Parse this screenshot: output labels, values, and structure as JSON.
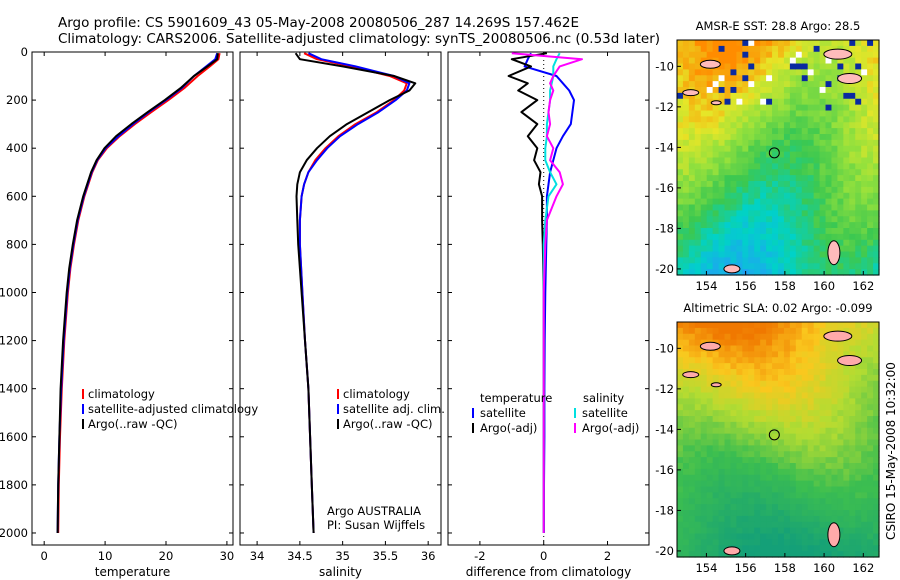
{
  "header": {
    "line1": "Argo profile: CS 5901609_43 05-May-2008 20080506_287 14.269S 157.462E",
    "line2": "Climatology: CARS2006. Satellite-adjusted climatology: synTS_20080506.nc (0.53d later)"
  },
  "side_label": "CSIRO 15-May-2008 10:32:00",
  "colors": {
    "red": "#ff0000",
    "blue": "#0000ff",
    "black": "#000000",
    "cyan": "#00e0e0",
    "magenta": "#ff00ff"
  },
  "chart_data": [
    {
      "type": "line",
      "panel": "temperature",
      "xlabel": "temperature",
      "ylabel": "",
      "xlim": [
        -2,
        31
      ],
      "ylim": [
        2050,
        0
      ],
      "y_reversed": true,
      "xticks": [
        0,
        10,
        20,
        30
      ],
      "yticks": [
        0,
        200,
        400,
        600,
        800,
        1000,
        1200,
        1400,
        1600,
        1800,
        2000
      ],
      "depth": [
        5,
        30,
        60,
        100,
        150,
        200,
        250,
        300,
        350,
        400,
        450,
        500,
        600,
        700,
        800,
        900,
        1000,
        1200,
        1400,
        1600,
        1800,
        2000
      ],
      "series": [
        {
          "name": "climatology",
          "color": "red",
          "values": [
            28.8,
            28.6,
            27.2,
            25.2,
            23.0,
            20.4,
            17.6,
            14.9,
            12.4,
            10.3,
            8.8,
            7.9,
            6.6,
            5.6,
            4.9,
            4.3,
            3.9,
            3.3,
            2.9,
            2.6,
            2.4,
            2.3
          ]
        },
        {
          "name": "satellite-adjusted climatology",
          "color": "blue",
          "values": [
            28.4,
            28.1,
            26.6,
            24.6,
            22.6,
            20.0,
            17.2,
            14.6,
            12.2,
            10.1,
            8.7,
            7.8,
            6.5,
            5.5,
            4.8,
            4.2,
            3.8,
            3.2,
            2.8,
            2.5,
            2.3,
            2.2
          ]
        },
        {
          "name": "Argo(..raw -QC)",
          "color": "black",
          "values": [
            28.5,
            28.4,
            26.8,
            24.6,
            22.4,
            19.8,
            17.0,
            14.3,
            11.8,
            9.9,
            8.6,
            7.7,
            6.4,
            5.4,
            4.7,
            4.1,
            3.7,
            3.1,
            2.7,
            2.5,
            2.3,
            2.2
          ]
        }
      ],
      "legend": [
        "climatology",
        "satellite-adjusted climatology",
        "Argo(..raw -QC)"
      ]
    },
    {
      "type": "line",
      "panel": "salinity",
      "xlabel": "salinity",
      "xlim": [
        33.8,
        36.15
      ],
      "ylim": [
        2050,
        0
      ],
      "y_reversed": true,
      "xticks": [
        34,
        34.5,
        35,
        35.5,
        36
      ],
      "depth": [
        5,
        30,
        60,
        100,
        130,
        160,
        200,
        250,
        300,
        350,
        400,
        450,
        500,
        550,
        600,
        700,
        800,
        1000,
        1200,
        1400,
        1600,
        1800,
        2000
      ],
      "series": [
        {
          "name": "climatology",
          "color": "red",
          "values": [
            34.55,
            34.7,
            35.1,
            35.55,
            35.75,
            35.72,
            35.6,
            35.4,
            35.15,
            34.95,
            34.8,
            34.68,
            34.6,
            34.55,
            34.52,
            34.5,
            34.5,
            34.53,
            34.56,
            34.6,
            34.62,
            34.64,
            34.66
          ]
        },
        {
          "name": "satellite adj. clim.",
          "color": "blue",
          "values": [
            34.6,
            34.75,
            35.15,
            35.6,
            35.78,
            35.75,
            35.62,
            35.42,
            35.18,
            34.97,
            34.82,
            34.7,
            34.6,
            34.55,
            34.52,
            34.5,
            34.5,
            34.53,
            34.56,
            34.6,
            34.62,
            34.64,
            34.66
          ]
        },
        {
          "name": "Argo(..raw -QC)",
          "color": "black",
          "values": [
            34.45,
            34.5,
            35.0,
            35.6,
            35.85,
            35.78,
            35.55,
            35.3,
            35.05,
            34.85,
            34.7,
            34.58,
            34.5,
            34.47,
            34.46,
            34.47,
            34.48,
            34.52,
            34.56,
            34.6,
            34.62,
            34.64,
            34.66
          ]
        }
      ],
      "legend": [
        "climatology",
        "satellite adj. clim.",
        "Argo(..raw -QC)"
      ],
      "annotation": [
        "Argo AUSTRALIA",
        "PI: Susan Wijffels"
      ]
    },
    {
      "type": "line",
      "panel": "difference",
      "xlabel": "difference from climatology",
      "xlim": [
        -3,
        3.3
      ],
      "ylim": [
        2050,
        0
      ],
      "y_reversed": true,
      "xticks": [
        -2,
        0,
        2
      ],
      "depth": [
        5,
        30,
        60,
        100,
        130,
        160,
        200,
        250,
        300,
        350,
        400,
        450,
        500,
        550,
        600,
        700,
        800,
        1000,
        1200,
        1400,
        1600,
        1800,
        2000
      ],
      "series": [
        {
          "name": "temperature satellite",
          "color": "blue",
          "values": [
            -0.4,
            -0.5,
            -0.6,
            0.4,
            0.6,
            0.8,
            0.95,
            0.9,
            0.85,
            0.6,
            0.4,
            0.3,
            0.2,
            0.15,
            0.1,
            0.1,
            0.08,
            0.05,
            0.03,
            0.02,
            0.02,
            0.01,
            0.01
          ]
        },
        {
          "name": "temperature Argo(-adj)",
          "color": "black",
          "values": [
            0.1,
            -1.0,
            -0.4,
            -1.1,
            -0.5,
            -0.8,
            -0.2,
            -0.7,
            -0.2,
            -0.5,
            -0.2,
            -0.3,
            -0.1,
            -0.15,
            -0.05,
            -0.05,
            -0.03,
            0.0,
            0.0,
            0.0,
            0.0,
            0.0,
            0.0
          ]
        },
        {
          "name": "salinity satellite",
          "color": "cyan",
          "values": [
            0.5,
            0.4,
            0.3,
            0.3,
            0.25,
            0.2,
            0.2,
            0.15,
            0.1,
            0.1,
            0.05,
            0.05,
            0.2,
            0.4,
            0.15,
            0.05,
            0.0,
            0.0,
            0.0,
            0.0,
            0.0,
            0.0,
            0.0
          ]
        },
        {
          "name": "salinity Argo(-adj)",
          "color": "magenta",
          "values": [
            -1.0,
            1.2,
            0.5,
            0.3,
            0.2,
            0.3,
            0.2,
            0.15,
            0.2,
            0.1,
            0.3,
            0.2,
            0.5,
            0.6,
            0.4,
            0.1,
            0.05,
            0.0,
            0.0,
            0.0,
            0.0,
            0.0,
            0.0
          ]
        }
      ],
      "legend_left": {
        "heading": "temperature",
        "items": [
          "satellite",
          "Argo(-adj)"
        ]
      },
      "legend_right": {
        "heading": "salinity",
        "items": [
          "satellite",
          "Argo(-adj)"
        ]
      }
    },
    {
      "type": "heatmap",
      "panel": "sst-map",
      "title": "AMSR-E SST: 28.8 Argo: 28.5",
      "xlim": [
        152.5,
        162.8
      ],
      "ylim": [
        -20.3,
        -8.7
      ],
      "xticks": [
        154,
        156,
        158,
        160,
        162
      ],
      "yticks": [
        -10,
        -12,
        -14,
        -16,
        -18,
        -20
      ],
      "profile_marker": {
        "lon": 157.462,
        "lat": -14.269
      }
    },
    {
      "type": "heatmap",
      "panel": "sla-map",
      "title": "Altimetric SLA: 0.02 Argo: -0.099",
      "xlim": [
        152.5,
        162.8
      ],
      "ylim": [
        -20.3,
        -8.7
      ],
      "xticks": [
        154,
        156,
        158,
        160,
        162
      ],
      "yticks": [
        -10,
        -12,
        -14,
        -16,
        -18,
        -20
      ],
      "profile_marker": {
        "lon": 157.462,
        "lat": -14.269
      }
    }
  ]
}
